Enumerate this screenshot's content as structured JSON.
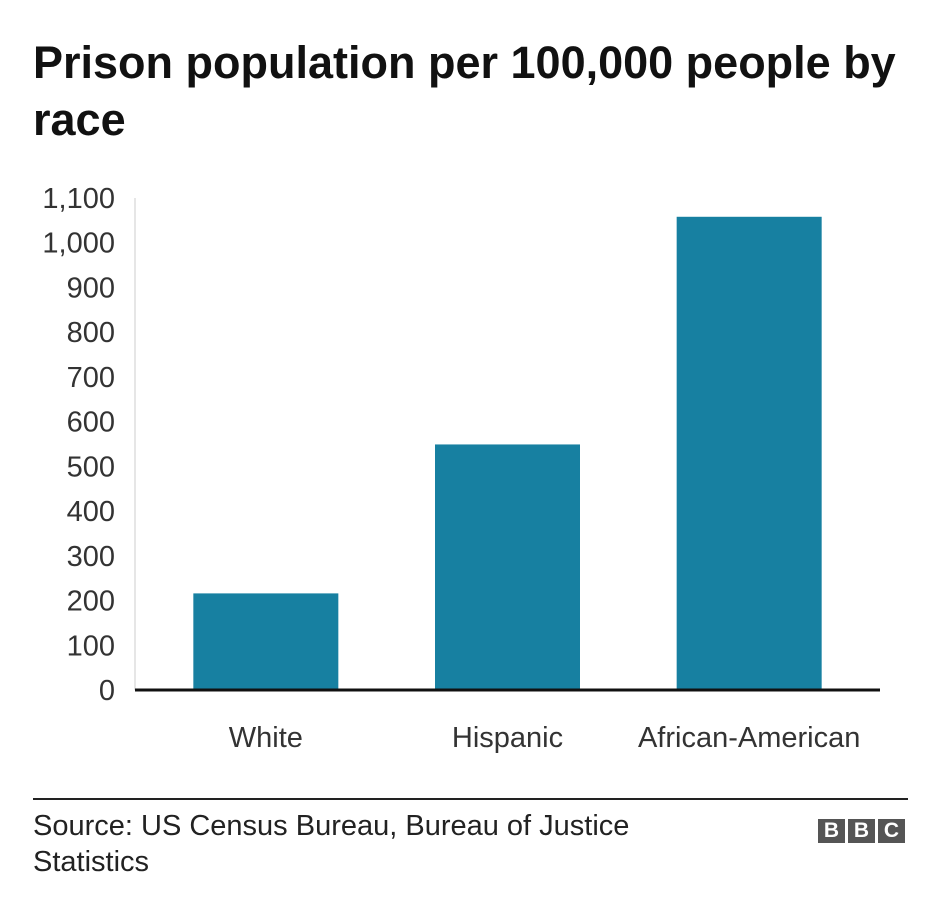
{
  "chart_data": {
    "type": "bar",
    "title": "Prison population per 100,000 people by race",
    "categories": [
      "White",
      "Hispanic",
      "African-American"
    ],
    "values": [
      216,
      549,
      1058
    ],
    "xlabel": "",
    "ylabel": "",
    "ylim": [
      0,
      1100
    ],
    "yticks": [
      0,
      100,
      200,
      300,
      400,
      500,
      600,
      700,
      800,
      900,
      1000,
      1100
    ],
    "ytick_labels": [
      "0",
      "100",
      "200",
      "300",
      "400",
      "500",
      "600",
      "700",
      "800",
      "900",
      "1,000",
      "1,100"
    ],
    "grid": false,
    "legend": "none",
    "bar_color": "#1780a1"
  },
  "footer": {
    "source": "Source: US Census Bureau, Bureau of Justice Statistics",
    "logo_letters": [
      "B",
      "B",
      "C"
    ]
  }
}
